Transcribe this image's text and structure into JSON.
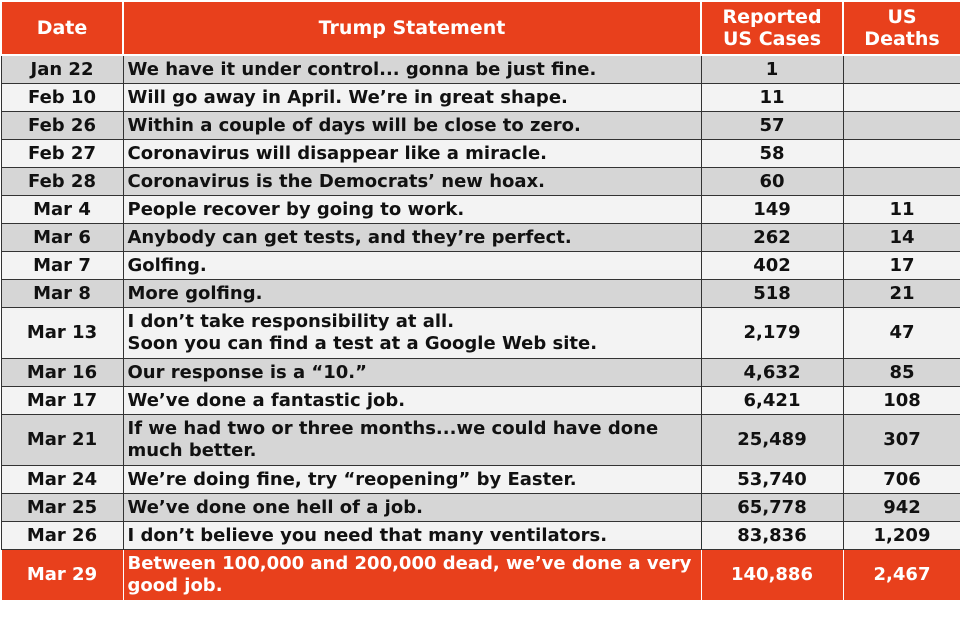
{
  "headers": {
    "date": "Date",
    "statement": "Trump Statement",
    "cases_line1": "Reported",
    "cases_line2": "US Cases",
    "deaths_line1": "US",
    "deaths_line2": "Deaths"
  },
  "rows": [
    {
      "date": "Jan 22",
      "statement": "We have it under control... gonna be just fine.",
      "cases": "1",
      "deaths": ""
    },
    {
      "date": "Feb 10",
      "statement": "Will go away in April. We’re in great shape.",
      "cases": "11",
      "deaths": ""
    },
    {
      "date": "Feb 26",
      "statement": "Within a couple of days will be close to zero.",
      "cases": "57",
      "deaths": ""
    },
    {
      "date": "Feb 27",
      "statement": "Coronavirus will disappear like a miracle.",
      "cases": "58",
      "deaths": ""
    },
    {
      "date": "Feb 28",
      "statement": "Coronavirus is the Democrats’ new hoax.",
      "cases": "60",
      "deaths": ""
    },
    {
      "date": "Mar 4",
      "statement": "People recover by going to work.",
      "cases": "149",
      "deaths": "11"
    },
    {
      "date": "Mar 6",
      "statement": "Anybody can get tests, and they’re perfect.",
      "cases": "262",
      "deaths": "14"
    },
    {
      "date": "Mar 7",
      "statement": "Golfing.",
      "cases": "402",
      "deaths": "17"
    },
    {
      "date": "Mar 8",
      "statement": "More golfing.",
      "cases": "518",
      "deaths": "21"
    },
    {
      "date": "Mar 13",
      "statement": "I don’t take responsibility at all.",
      "statement2": "Soon you can find a test at a Google Web site.",
      "cases": "2,179",
      "deaths": "47"
    },
    {
      "date": "Mar 16",
      "statement": "Our response is a “10.”",
      "cases": "4,632",
      "deaths": "85"
    },
    {
      "date": "Mar 17",
      "statement": "We’ve done a fantastic job.",
      "cases": "6,421",
      "deaths": "108"
    },
    {
      "date": "Mar 21",
      "statement": "If we had two or three months...we could have done much better.",
      "cases": "25,489",
      "deaths": "307"
    },
    {
      "date": "Mar 24",
      "statement": "We’re doing fine, try “reopening” by Easter.",
      "cases": "53,740",
      "deaths": "706"
    },
    {
      "date": "Mar 25",
      "statement": "We’ve done one hell of a job.",
      "cases": "65,778",
      "deaths": "942"
    },
    {
      "date": "Mar 26",
      "statement": "I don’t believe you need that many ventilators.",
      "cases": "83,836",
      "deaths": "1,209"
    },
    {
      "date": "Mar 29",
      "statement": "Between 100,000 and 200,000 dead, we’ve done a very good job.",
      "cases": "140,886",
      "deaths": "2,467"
    }
  ],
  "colors": {
    "header_bg": "#e8401c",
    "row_shade": "#d6d6d6",
    "row_plain": "#f3f3f3"
  }
}
